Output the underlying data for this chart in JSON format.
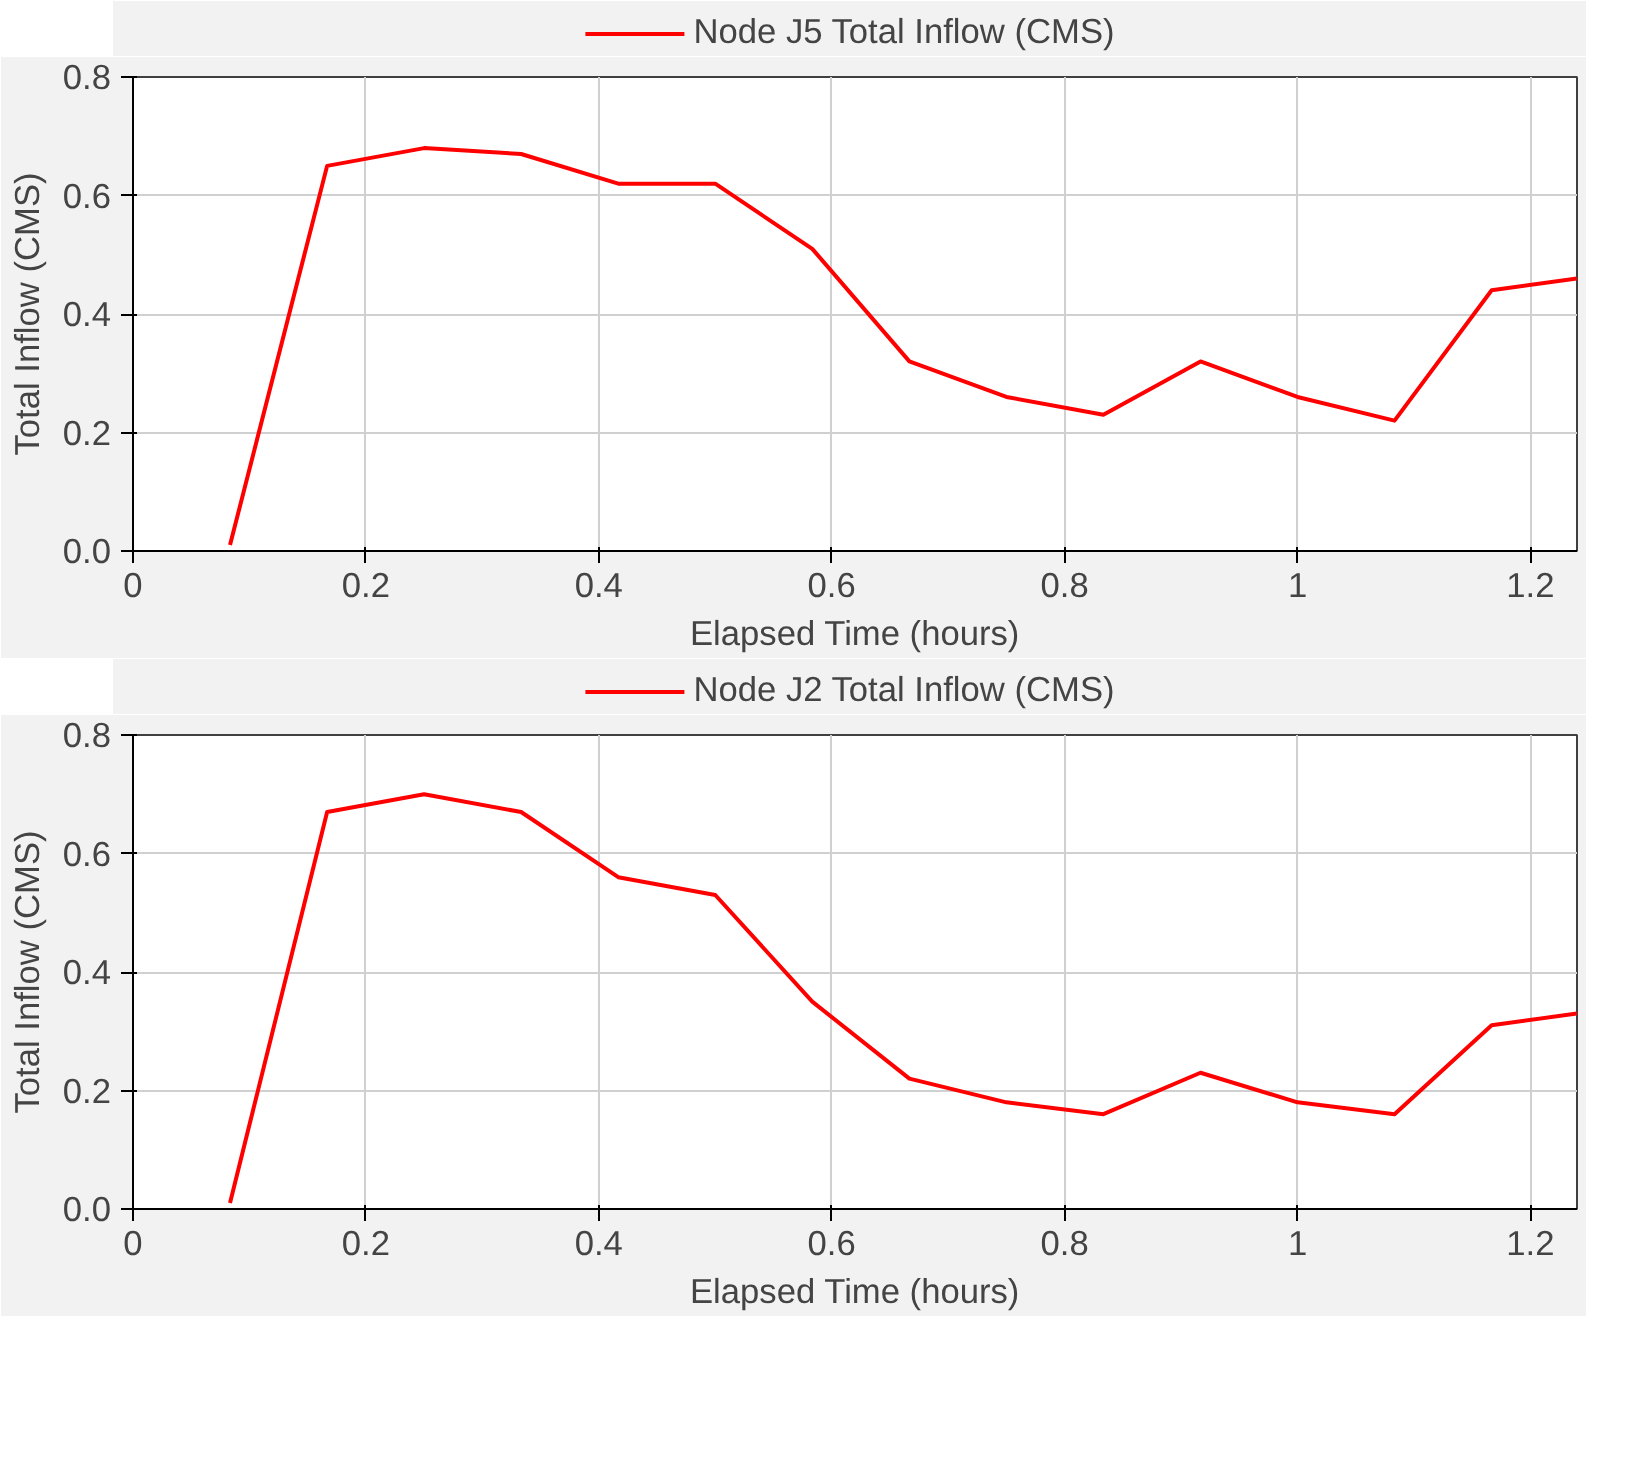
{
  "chart_data": [
    {
      "type": "line",
      "xlabel": "Elapsed Time (hours)",
      "ylabel": "Total Inflow (CMS)",
      "x": [
        0.0833,
        0.1667,
        0.25,
        0.3333,
        0.4167,
        0.5,
        0.5833,
        0.6667,
        0.75,
        0.8333,
        0.9167,
        1.0,
        1.0833,
        1.1667,
        1.24
      ],
      "series": [
        {
          "name": "Node J5 Total Inflow (CMS)",
          "color": "#ff0000",
          "values": [
            0.01,
            0.65,
            0.68,
            0.67,
            0.62,
            0.62,
            0.51,
            0.32,
            0.26,
            0.23,
            0.32,
            0.26,
            0.22,
            0.44,
            0.46
          ]
        }
      ],
      "xlim": [
        0,
        1.24
      ],
      "ylim": [
        0,
        0.8
      ],
      "xticks": [
        0,
        0.2,
        0.4,
        0.6,
        0.8,
        1,
        1.2
      ],
      "yticks": [
        {
          "value": 0,
          "label": "0.0"
        },
        0.2,
        0.4,
        0.6,
        0.8
      ],
      "grid": true,
      "legend": "top",
      "marker": "none",
      "line_style": "solid"
    },
    {
      "type": "line",
      "xlabel": "Elapsed Time (hours)",
      "ylabel": "Total Inflow (CMS)",
      "x": [
        0.0833,
        0.1667,
        0.25,
        0.3333,
        0.4167,
        0.5,
        0.5833,
        0.6667,
        0.75,
        0.8333,
        0.9167,
        1.0,
        1.0833,
        1.1667,
        1.24
      ],
      "series": [
        {
          "name": "Node J2 Total Inflow (CMS)",
          "color": "#ff0000",
          "values": [
            0.01,
            0.67,
            0.7,
            0.67,
            0.56,
            0.53,
            0.35,
            0.22,
            0.18,
            0.16,
            0.23,
            0.18,
            0.16,
            0.31,
            0.33
          ]
        }
      ],
      "xlim": [
        0,
        1.24
      ],
      "ylim": [
        0,
        0.8
      ],
      "xticks": [
        0,
        0.2,
        0.4,
        0.6,
        0.8,
        1,
        1.2
      ],
      "yticks": [
        {
          "value": 0,
          "label": "0.0"
        },
        0.2,
        0.4,
        0.6,
        0.8
      ],
      "grid": true,
      "legend": "top",
      "marker": "none",
      "line_style": "solid"
    }
  ]
}
